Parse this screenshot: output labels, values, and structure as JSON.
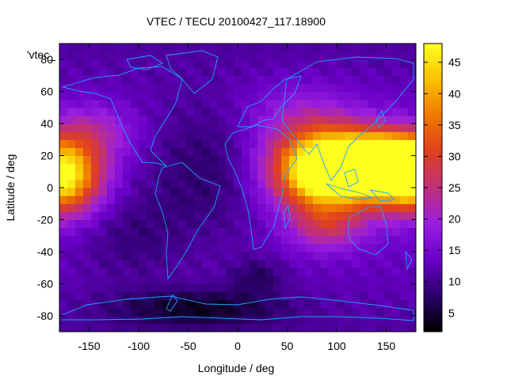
{
  "chart_data": {
    "type": "heatmap",
    "title": "VTEC / TECU 20100427_117.18900",
    "xlabel": "Longitude / deg",
    "ylabel": "Latitude / deg",
    "key_label": "'vtec_",
    "xlim": [
      -180,
      180
    ],
    "ylim": [
      -90,
      90
    ],
    "x_ticks": [
      -150,
      -100,
      -50,
      0,
      50,
      100,
      150
    ],
    "y_ticks": [
      -80,
      -60,
      -40,
      -20,
      0,
      20,
      40,
      60,
      80
    ],
    "colorbar": {
      "range": [
        2,
        48
      ],
      "ticks": [
        5,
        10,
        15,
        20,
        25,
        30,
        35,
        40,
        45
      ],
      "palette": [
        "#000000",
        "#2a0068",
        "#6a00c8",
        "#9a1ee0",
        "#c0307a",
        "#e0401e",
        "#f07800",
        "#f8c000",
        "#ffff20"
      ]
    },
    "coastline_color": "#19a5ff",
    "grid": {
      "lon_step": 8,
      "lat_step": 5,
      "lon_start": -180,
      "lat_start": -90
    },
    "features": [
      {
        "lon": 120,
        "lat": 12,
        "amp": 40,
        "sx": 50,
        "sy": 16
      },
      {
        "lon": 150,
        "lat": 18,
        "amp": 22,
        "sx": 35,
        "sy": 10
      },
      {
        "lon": 80,
        "lat": 10,
        "amp": 18,
        "sx": 30,
        "sy": 18
      },
      {
        "lon": -180,
        "lat": 8,
        "amp": 38,
        "sx": 28,
        "sy": 16
      },
      {
        "lon": 180,
        "lat": 8,
        "amp": 30,
        "sx": 25,
        "sy": 14
      },
      {
        "lon": -145,
        "lat": 35,
        "amp": 8,
        "sx": 30,
        "sy": 12
      },
      {
        "lon": 90,
        "lat": -25,
        "amp": 10,
        "sx": 25,
        "sy": 10
      },
      {
        "lon": 60,
        "lat": 45,
        "amp": 6,
        "sx": 40,
        "sy": 15
      },
      {
        "lon": -30,
        "lat": 10,
        "amp": -6,
        "sx": 50,
        "sy": 30
      },
      {
        "lon": -40,
        "lat": -75,
        "amp": -8,
        "sx": 60,
        "sy": 8
      },
      {
        "lon": 20,
        "lat": -55,
        "amp": -5,
        "sx": 20,
        "sy": 8
      },
      {
        "lon": -110,
        "lat": -30,
        "amp": -4,
        "sx": 40,
        "sy": 20
      }
    ]
  }
}
